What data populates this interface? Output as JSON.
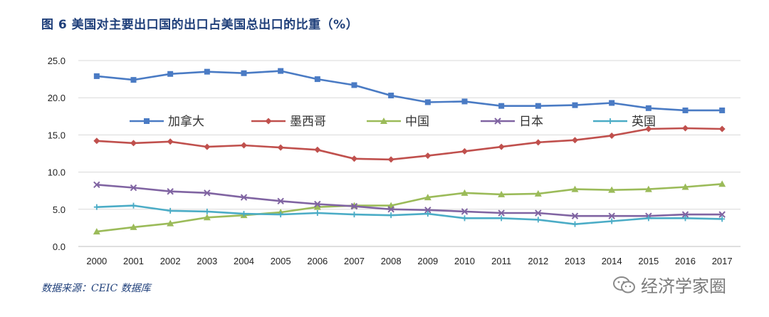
{
  "title": "图 6  美国对主要出口国的出口占美国总出口的比重（%）",
  "source": "数据来源：CEIC 数据库",
  "watermark": {
    "text": "经济学家圈",
    "icon": "wechat-icon"
  },
  "chart_data": {
    "type": "line",
    "title": "图 6  美国对主要出口国的出口占美国总出口的比重（%）",
    "xlabel": "",
    "ylabel": "",
    "ylim": [
      0,
      25
    ],
    "yticks": [
      "0.0",
      "5.0",
      "10.0",
      "15.0",
      "20.0",
      "25.0"
    ],
    "grid": true,
    "legend_position": "inside-top",
    "categories": [
      "2000",
      "2001",
      "2002",
      "2003",
      "2004",
      "2005",
      "2006",
      "2007",
      "2008",
      "2009",
      "2010",
      "2011",
      "2012",
      "2013",
      "2014",
      "2015",
      "2016",
      "2017"
    ],
    "series": [
      {
        "name": "加拿大",
        "color": "#4a7bc4",
        "marker": "square",
        "values": [
          22.9,
          22.4,
          23.2,
          23.5,
          23.3,
          23.6,
          22.5,
          21.7,
          20.3,
          19.4,
          19.5,
          18.9,
          18.9,
          19.0,
          19.3,
          18.6,
          18.3,
          18.3
        ]
      },
      {
        "name": "墨西哥",
        "color": "#c0504d",
        "marker": "diamond",
        "values": [
          14.2,
          13.9,
          14.1,
          13.4,
          13.6,
          13.3,
          13.0,
          11.8,
          11.7,
          12.2,
          12.8,
          13.4,
          14.0,
          14.3,
          14.9,
          15.8,
          15.9,
          15.8
        ]
      },
      {
        "name": "中国",
        "color": "#9bbb59",
        "marker": "triangle",
        "values": [
          2.0,
          2.6,
          3.1,
          3.9,
          4.2,
          4.6,
          5.3,
          5.5,
          5.5,
          6.6,
          7.2,
          7.0,
          7.1,
          7.7,
          7.6,
          7.7,
          8.0,
          8.4
        ]
      },
      {
        "name": "日本",
        "color": "#8064a2",
        "marker": "x",
        "values": [
          8.3,
          7.9,
          7.4,
          7.2,
          6.6,
          6.1,
          5.7,
          5.4,
          5.0,
          4.9,
          4.7,
          4.5,
          4.5,
          4.1,
          4.1,
          4.1,
          4.3,
          4.3
        ]
      },
      {
        "name": "英国",
        "color": "#4bacc6",
        "marker": "plus",
        "values": [
          5.3,
          5.5,
          4.8,
          4.7,
          4.4,
          4.3,
          4.5,
          4.3,
          4.2,
          4.4,
          3.8,
          3.8,
          3.6,
          3.0,
          3.4,
          3.8,
          3.8,
          3.7
        ]
      }
    ]
  }
}
